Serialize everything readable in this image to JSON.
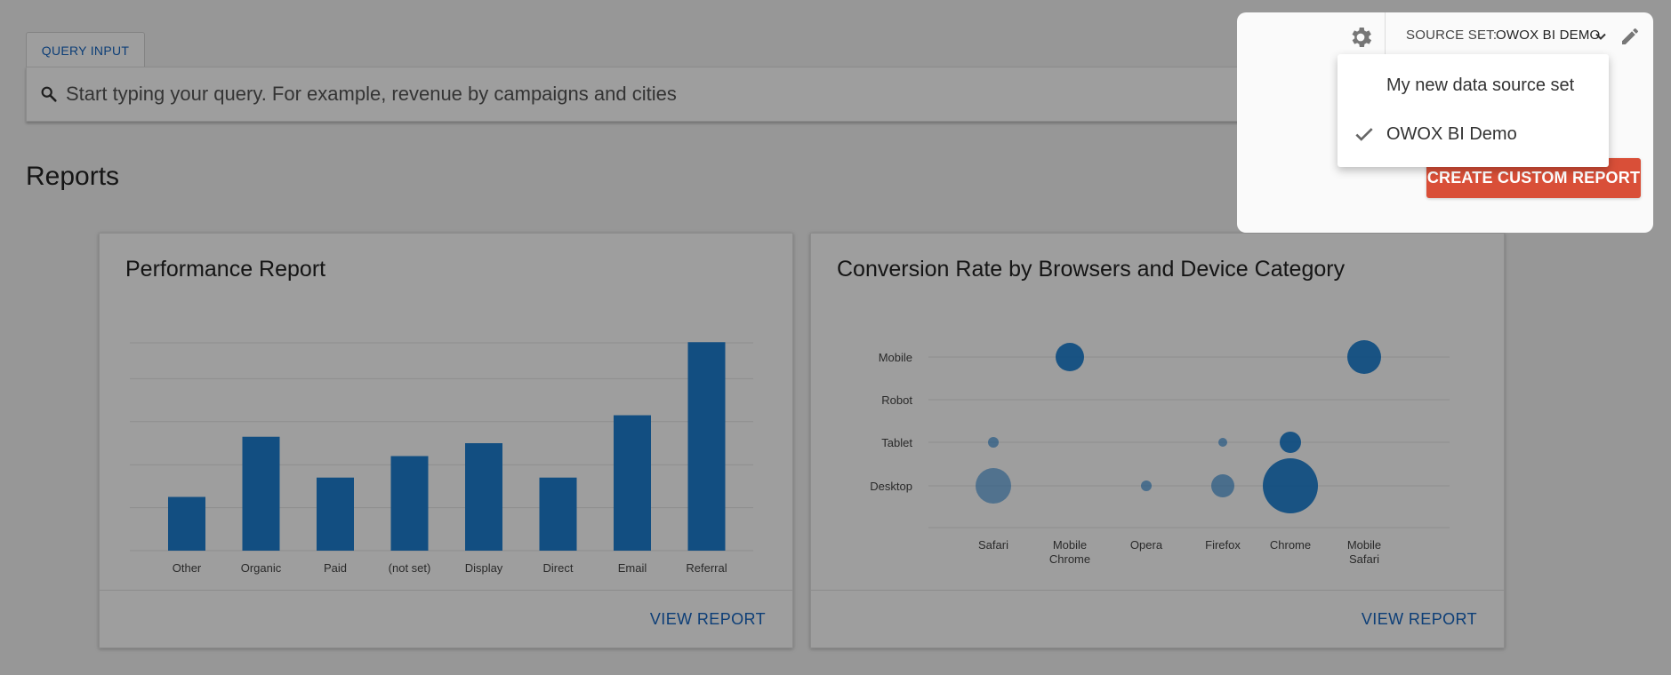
{
  "query": {
    "tab_label": "QUERY INPUT",
    "placeholder": "Start typing your query. For example, revenue by campaigns and cities"
  },
  "reports": {
    "title": "Reports",
    "cards": [
      {
        "title": "Performance Report",
        "view_label": "VIEW REPORT"
      },
      {
        "title": "Conversion Rate by Browsers and Device Category",
        "view_label": "VIEW REPORT"
      }
    ]
  },
  "source_set": {
    "label": "SOURCE SET:",
    "value": "OWOX BI DEMO",
    "options": [
      {
        "label": "My new data source set",
        "selected": false
      },
      {
        "label": "OWOX BI Demo",
        "selected": true
      }
    ],
    "create_button": "CREATE CUSTOM REPORT"
  },
  "colors": {
    "accent": "#1565c0",
    "bar": "#1e7fd1",
    "create_button": "#d94f38"
  },
  "icons": [
    "search-icon",
    "gear-icon",
    "chevron-down-icon",
    "edit-icon",
    "check-icon"
  ],
  "chart_data": [
    {
      "type": "bar",
      "title": "Performance Report",
      "categories": [
        "Other",
        "Organic",
        "Paid",
        "(not set)",
        "Display",
        "Direct",
        "Email",
        "Referral"
      ],
      "values": [
        25,
        53,
        34,
        44,
        50,
        34,
        63,
        97
      ],
      "ylim": [
        0,
        100
      ],
      "grid": true
    },
    {
      "type": "scatter",
      "title": "Conversion Rate by Browsers and Device Category",
      "x_categories": [
        "Safari",
        "Mobile Chrome",
        "Opera",
        "Firefox",
        "Chrome",
        "Mobile Safari"
      ],
      "y_categories": [
        "Mobile",
        "Robot",
        "Tablet",
        "Desktop"
      ],
      "points": [
        {
          "x": "Mobile Chrome",
          "y": "Mobile",
          "size": 16
        },
        {
          "x": "Mobile Safari",
          "y": "Mobile",
          "size": 19
        },
        {
          "x": "Safari",
          "y": "Tablet",
          "size": 6
        },
        {
          "x": "Firefox",
          "y": "Tablet",
          "size": 5
        },
        {
          "x": "Chrome",
          "y": "Tablet",
          "size": 12
        },
        {
          "x": "Safari",
          "y": "Desktop",
          "size": 20
        },
        {
          "x": "Opera",
          "y": "Desktop",
          "size": 6
        },
        {
          "x": "Firefox",
          "y": "Desktop",
          "size": 13
        },
        {
          "x": "Chrome",
          "y": "Desktop",
          "size": 31
        }
      ],
      "grid": true
    }
  ]
}
